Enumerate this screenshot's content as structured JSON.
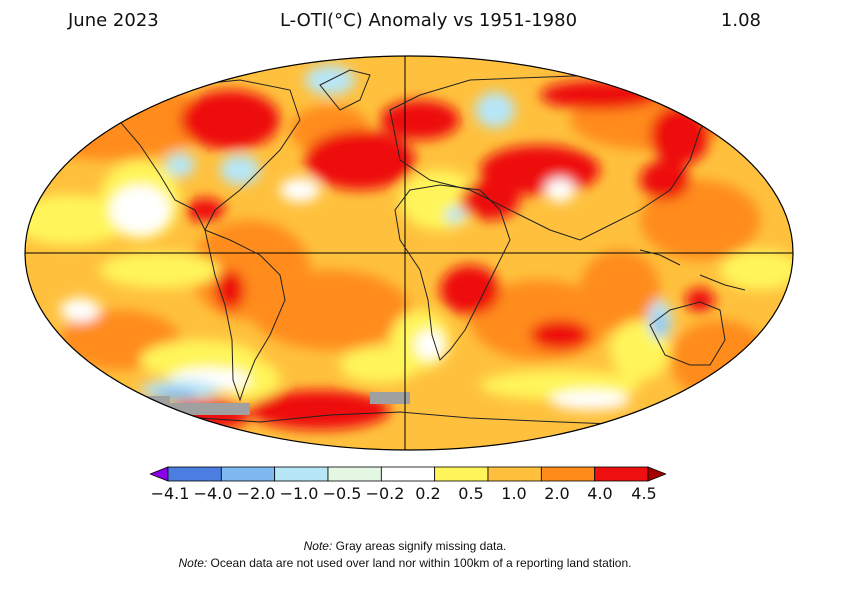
{
  "header": {
    "date_label": "June 2023",
    "title": "L-OTI(°C) Anomaly vs 1951-1980",
    "global_value": "1.08"
  },
  "colorbar": {
    "tick_labels": [
      "−4.1",
      "−4.0",
      "−2.0",
      "−1.0",
      "−0.5",
      "−0.2",
      "0.2",
      "0.5",
      "1.0",
      "2.0",
      "4.0",
      "4.5"
    ],
    "colors": [
      "#8b00e8",
      "#4c7de0",
      "#7fb9ef",
      "#b7e6f7",
      "#e4f7e2",
      "#ffffff",
      "#fff55a",
      "#ffc13d",
      "#ff8c1a",
      "#ee1010",
      "#a50000"
    ]
  },
  "map": {
    "missing_color": "#a0a0a0",
    "base_color": "#ffc13d"
  },
  "notes": {
    "note1_label": "Note:",
    "note1_text": " Gray areas signify missing data.",
    "note2_label": "Note:",
    "note2_text": " Ocean data are not used over land nor within 100km of a reporting land station."
  }
}
